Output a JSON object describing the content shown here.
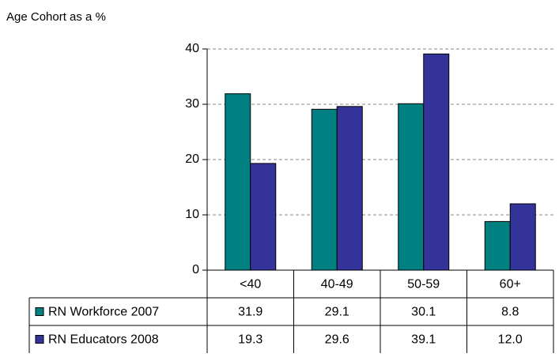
{
  "chart_data": {
    "type": "bar",
    "title": "Age Cohort as a %",
    "categories": [
      "<40",
      "40-49",
      "50-59",
      "60+"
    ],
    "series": [
      {
        "name": "RN Workforce 2007",
        "color": "#008080",
        "values": [
          31.9,
          29.1,
          30.1,
          8.8
        ]
      },
      {
        "name": "RN Educators 2008",
        "color": "#333399",
        "values": [
          19.3,
          29.6,
          39.1,
          12.0
        ],
        "value_labels": [
          "19.3",
          "29.6",
          "39.1",
          "12.0"
        ]
      }
    ],
    "ylim": [
      0,
      40
    ],
    "yticks": [
      0,
      10,
      20,
      30,
      40
    ],
    "grid": true
  }
}
